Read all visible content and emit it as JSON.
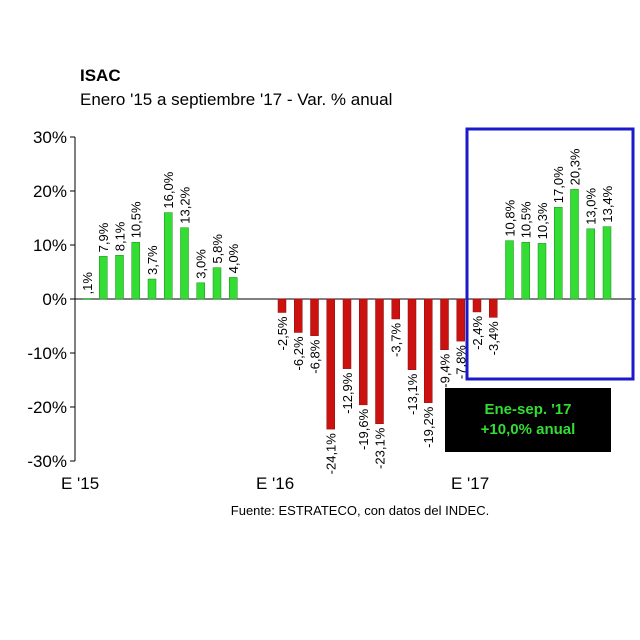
{
  "title": "ISAC",
  "subtitle": "Enero '15 a septiembre '17 - Var. % anual",
  "source": "Fuente: ESTRATECO, con datos del INDEC.",
  "callout": {
    "line1": "Ene-sep. '17",
    "line2": "+10,0% anual"
  },
  "colors": {
    "positive": "#33dd33",
    "negative": "#cc1111",
    "highlight_box": "#1a1acc",
    "callout_bg": "#000000",
    "callout_text": "#33dd33"
  },
  "chart_data": {
    "type": "bar",
    "ylim": [
      -30,
      30
    ],
    "yticks": [
      "30%",
      "20%",
      "10%",
      "0%",
      "-10%",
      "-20%",
      "-30%"
    ],
    "xtick_labels": [
      {
        "index": 0,
        "label": "E '15"
      },
      {
        "index": 12,
        "label": "E '16"
      },
      {
        "index": 24,
        "label": "E '17"
      }
    ],
    "values": [
      0.1,
      7.9,
      8.1,
      10.5,
      3.7,
      16.0,
      13.2,
      3.0,
      5.8,
      4.0,
      null,
      null,
      -2.5,
      -6.2,
      -6.8,
      -24.1,
      -12.9,
      -19.6,
      -23.1,
      -3.7,
      -13.1,
      -19.2,
      -9.4,
      -7.8,
      -2.4,
      -3.4,
      10.8,
      10.5,
      10.3,
      17.0,
      20.3,
      13.0,
      13.4
    ],
    "data_labels": [
      ",1%",
      "7,9%",
      "8,1%",
      "10,5%",
      "3,7%",
      "16,0%",
      "13,2%",
      "3,0%",
      "5,8%",
      "4,0%",
      "",
      "",
      "-2,5%",
      "-6,2%",
      "-6,8%",
      "-24,1%",
      "-12,9%",
      "-19,6%",
      "-23,1%",
      "-3,7%",
      "-13,1%",
      "-19,2%",
      "-9,4%",
      "-7,8%",
      "-2,4%",
      "-3,4%",
      "10,8%",
      "10,5%",
      "10,3%",
      "17,0%",
      "20,3%",
      "13,0%",
      "13,4%"
    ],
    "highlight_range": [
      24,
      32
    ]
  }
}
